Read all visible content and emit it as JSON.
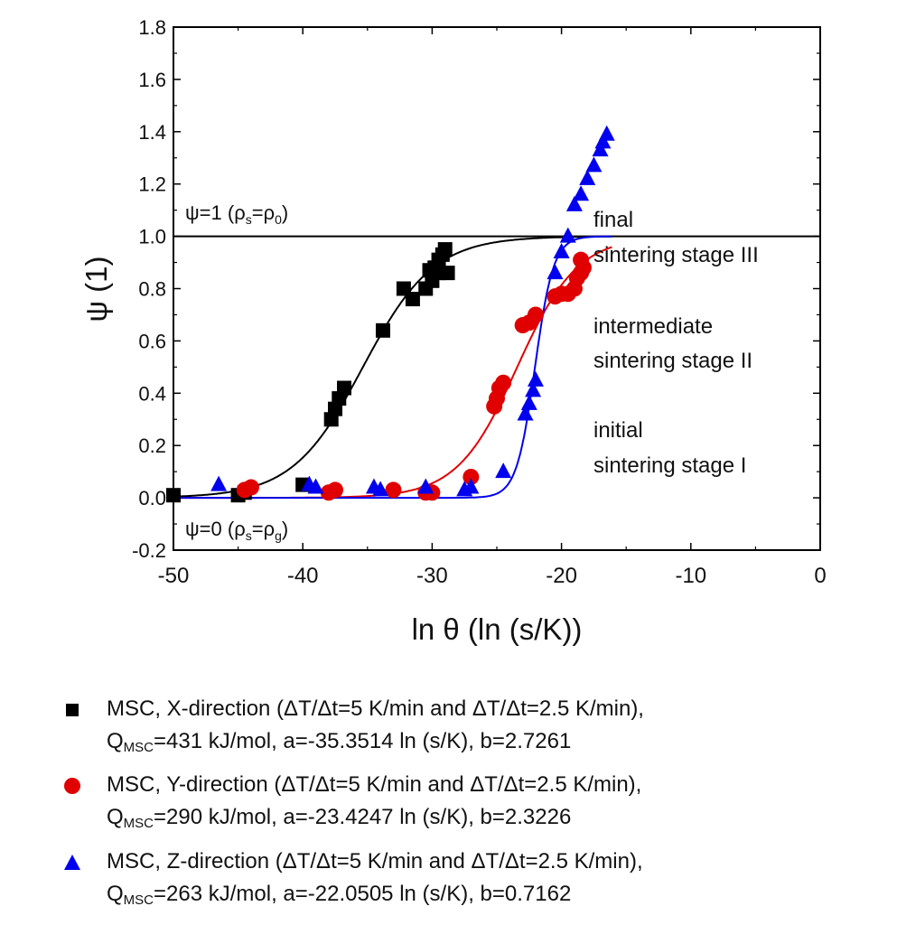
{
  "chart_data": {
    "type": "scatter",
    "xlabel": "ln θ (ln (s/K))",
    "ylabel": "ψ (1)",
    "xlim": [
      -50,
      0
    ],
    "ylim": [
      -0.2,
      1.8
    ],
    "xticks": [
      -50,
      -40,
      -30,
      -20,
      -10,
      0
    ],
    "xtick_labels": [
      "-50",
      "-40",
      "-30",
      "-20",
      "-10",
      "0"
    ],
    "yticks": [
      -0.2,
      0.0,
      0.2,
      0.4,
      0.6,
      0.8,
      1.0,
      1.2,
      1.4,
      1.6,
      1.8
    ],
    "ytick_labels": [
      "-0.2",
      "0.0",
      "0.2",
      "0.4",
      "0.6",
      "0.8",
      "1.0",
      "1.2",
      "1.4",
      "1.6",
      "1.8"
    ],
    "grid": false,
    "hline": 1.0,
    "annotations": {
      "psi1_pre": "ψ=1 (ρ",
      "psi1_sub1": "s",
      "psi1_mid": "=ρ",
      "psi1_sub2": "0",
      "psi1_post": ")",
      "psi0_pre": "ψ=0 (ρ",
      "psi0_sub1": "s",
      "psi0_mid": "=ρ",
      "psi0_sub2": "g",
      "psi0_post": ")",
      "stage3_line1": "final",
      "stage3_line2": "sintering stage III",
      "stage2_line1": "intermediate",
      "stage2_line2": "sintering stage II",
      "stage1_line1": "initial",
      "stage1_line2": "sintering stage I"
    },
    "series": [
      {
        "marker": "square",
        "color": "#000000",
        "fit": {
          "a": -35.3514,
          "b": 2.7261
        },
        "x": [
          -50.0,
          -45.0,
          -44.5,
          -40.0,
          -37.8,
          -37.5,
          -37.2,
          -36.8,
          -33.8,
          -32.2,
          -31.5,
          -30.5,
          -30.0,
          -29.8,
          -29.5,
          -29.2,
          -29.0,
          -29.5,
          -30.2,
          -28.8
        ],
        "y": [
          0.01,
          0.01,
          0.02,
          0.05,
          0.3,
          0.34,
          0.38,
          0.42,
          0.64,
          0.8,
          0.76,
          0.8,
          0.83,
          0.88,
          0.91,
          0.93,
          0.95,
          0.86,
          0.87,
          0.86
        ],
        "legend_line1": "MSC, X-direction (ΔT/Δt=5 K/min and ΔT/Δt=2.5 K/min),",
        "legend_q_pre": "Q",
        "legend_q_sub": "MSC",
        "legend_q_post": "=431 kJ/mol, a=-35.3514 ln (s/K), b=2.7261"
      },
      {
        "marker": "circle",
        "color": "#e00000",
        "fit": {
          "a": -23.4247,
          "b": 2.3226
        },
        "x": [
          -44.5,
          -44.0,
          -38.0,
          -37.5,
          -33.0,
          -30.5,
          -30.0,
          -27.0,
          -25.2,
          -25.0,
          -24.8,
          -24.5,
          -23.0,
          -22.5,
          -22.0,
          -20.5,
          -20.0,
          -19.5,
          -19.0,
          -18.8,
          -18.5,
          -18.3,
          -18.5
        ],
        "y": [
          0.03,
          0.04,
          0.02,
          0.03,
          0.03,
          0.02,
          0.02,
          0.08,
          0.35,
          0.38,
          0.42,
          0.44,
          0.66,
          0.67,
          0.7,
          0.77,
          0.78,
          0.78,
          0.8,
          0.84,
          0.86,
          0.88,
          0.91
        ],
        "legend_line1": "MSC, Y-direction (ΔT/Δt=5 K/min and ΔT/Δt=2.5 K/min),",
        "legend_q_pre": "Q",
        "legend_q_sub": "MSC",
        "legend_q_post": "=290 kJ/mol, a=-23.4247 ln (s/K), b=2.3226"
      },
      {
        "marker": "triangle",
        "color": "#0000ee",
        "fit": {
          "a": -22.0505,
          "b": 0.7162
        },
        "x": [
          -46.5,
          -39.5,
          -39.0,
          -34.5,
          -34.0,
          -30.5,
          -27.5,
          -27.0,
          -24.5,
          -22.8,
          -22.5,
          -22.2,
          -22.0,
          -20.5,
          -20.0,
          -19.5,
          -19.0,
          -18.5,
          -18.0,
          -17.5,
          -17.0,
          -16.8,
          -16.5
        ],
        "y": [
          0.05,
          0.05,
          0.04,
          0.04,
          0.03,
          0.04,
          0.03,
          0.04,
          0.1,
          0.32,
          0.36,
          0.41,
          0.45,
          0.86,
          0.94,
          1.0,
          1.12,
          1.16,
          1.22,
          1.27,
          1.33,
          1.36,
          1.39
        ],
        "legend_line1": "MSC, Z-direction (ΔT/Δt=5 K/min and ΔT/Δt=2.5 K/min),",
        "legend_q_pre": "Q",
        "legend_q_sub": "MSC",
        "legend_q_post": "=263 kJ/mol, a=-22.0505 ln (s/K), b=0.7162"
      }
    ]
  }
}
